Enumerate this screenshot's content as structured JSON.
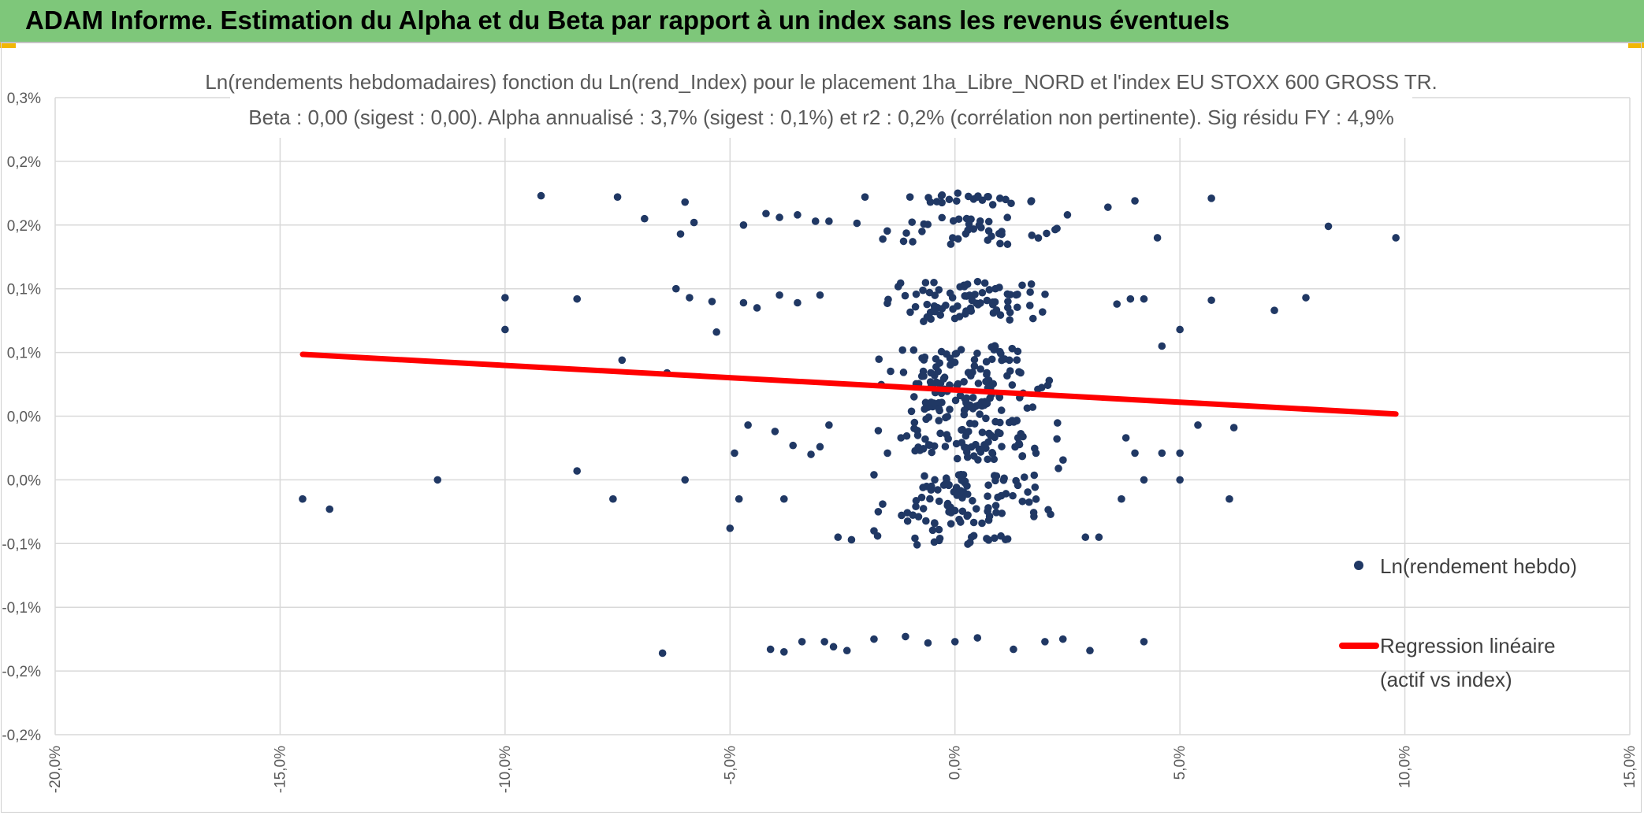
{
  "header": {
    "title": "ADAM Informe. Estimation du Alpha et du Beta par rapport à un index sans les revenus éventuels"
  },
  "colors": {
    "header_bg": "#7ec77a",
    "points": "#203864",
    "regression": "#ff0000",
    "grid": "#d9d9d9",
    "accent": "#f2b705"
  },
  "chart_data": {
    "type": "scatter",
    "title_line1": "Ln(rendements hebdomadaires) fonction du Ln(rend_Index) pour le placement 1ha_Libre_NORD et l'index EU STOXX 600 GROSS TR.",
    "title_line2": "Beta : 0,00 (sigest : 0,00). Alpha annualisé : 3,7% (sigest : 0,1%) et r2 : 0,2% (corrélation non pertinente). Sig résidu FY : 4,9%",
    "xlim": [
      -20,
      15
    ],
    "ylim": [
      -0.2,
      0.3
    ],
    "x_ticks": [
      -20,
      -15,
      -10,
      -5,
      0,
      5,
      10,
      15
    ],
    "x_tick_labels": [
      "-20,0%",
      "-15,0%",
      "-10,0%",
      "-5,0%",
      "0,0%",
      "5,0%",
      "10,0%",
      "15,0%"
    ],
    "y_ticks": [
      0.3,
      0.25,
      0.2,
      0.15,
      0.1,
      0.05,
      0.0,
      -0.05,
      -0.1,
      -0.15,
      -0.2
    ],
    "y_tick_labels": [
      "0,3%",
      "0,2%",
      "0,2%",
      "0,1%",
      "0,1%",
      "0,0%",
      "0,0%",
      "-0,1%",
      "-0,1%",
      "-0,2%",
      "-0,2%"
    ],
    "regression": {
      "x": [
        -14.5,
        9.8
      ],
      "y": [
        0.0985,
        0.0517
      ]
    },
    "legend": [
      {
        "label": "Ln(rendement hebdo)",
        "kind": "marker"
      },
      {
        "label_line1": "Regression linéaire",
        "label_line2": "(actif vs index)",
        "kind": "line"
      }
    ],
    "series": [
      {
        "name": "Ln(rendement hebdo)",
        "points": [
          [
            -14.5,
            -0.015
          ],
          [
            -13.9,
            -0.023
          ],
          [
            -11.5,
            0.0
          ],
          [
            -8.4,
            0.007
          ],
          [
            -7.6,
            -0.015
          ],
          [
            -6.0,
            0.0
          ],
          [
            -5.0,
            -0.038
          ],
          [
            -4.8,
            -0.015
          ],
          [
            -3.8,
            -0.015
          ],
          [
            -2.6,
            -0.045
          ],
          [
            -2.3,
            -0.047
          ],
          [
            -1.8,
            -0.04
          ],
          [
            3.2,
            -0.045
          ],
          [
            2.9,
            -0.045
          ],
          [
            6.1,
            -0.015
          ],
          [
            5.0,
            0.0
          ],
          [
            4.2,
            0.0
          ],
          [
            3.7,
            -0.015
          ],
          [
            -10.0,
            0.143
          ],
          [
            -10.0,
            0.118
          ],
          [
            -8.4,
            0.142
          ],
          [
            -7.4,
            0.094
          ],
          [
            -6.4,
            0.084
          ],
          [
            -6.2,
            0.15
          ],
          [
            -5.9,
            0.143
          ],
          [
            -5.4,
            0.14
          ],
          [
            -5.3,
            0.116
          ],
          [
            -4.7,
            0.139
          ],
          [
            -4.4,
            0.135
          ],
          [
            -3.9,
            0.145
          ],
          [
            -3.5,
            0.139
          ],
          [
            -3.0,
            0.145
          ],
          [
            7.1,
            0.133
          ],
          [
            7.8,
            0.143
          ],
          [
            5.7,
            0.141
          ],
          [
            5.0,
            0.118
          ],
          [
            4.6,
            0.105
          ],
          [
            4.2,
            0.142
          ],
          [
            3.6,
            0.138
          ],
          [
            3.9,
            0.142
          ],
          [
            6.2,
            0.041
          ],
          [
            5.4,
            0.043
          ],
          [
            5.0,
            0.021
          ],
          [
            4.6,
            0.021
          ],
          [
            4.0,
            0.021
          ],
          [
            3.8,
            0.033
          ],
          [
            -4.9,
            0.021
          ],
          [
            -4.6,
            0.043
          ],
          [
            -4.0,
            0.038
          ],
          [
            -3.6,
            0.027
          ],
          [
            -3.2,
            0.02
          ],
          [
            -3.0,
            0.026
          ],
          [
            -2.8,
            0.043
          ],
          [
            -9.2,
            0.223
          ],
          [
            -7.5,
            0.222
          ],
          [
            -6.9,
            0.205
          ],
          [
            -6.1,
            0.193
          ],
          [
            -6.0,
            0.218
          ],
          [
            -5.8,
            0.202
          ],
          [
            -4.7,
            0.2
          ],
          [
            -4.2,
            0.209
          ],
          [
            -3.9,
            0.206
          ],
          [
            -3.5,
            0.208
          ],
          [
            -3.1,
            0.203
          ],
          [
            -2.8,
            0.203
          ],
          [
            -2.0,
            0.222
          ],
          [
            -1.0,
            0.222
          ],
          [
            -0.3,
            0.223
          ],
          [
            0.5,
            0.222
          ],
          [
            1.0,
            0.221
          ],
          [
            1.7,
            0.219
          ],
          [
            2.5,
            0.208
          ],
          [
            3.4,
            0.214
          ],
          [
            4.0,
            0.219
          ],
          [
            4.5,
            0.19
          ],
          [
            5.7,
            0.221
          ],
          [
            8.3,
            0.199
          ],
          [
            9.8,
            0.19
          ],
          [
            -6.5,
            -0.136
          ],
          [
            -4.1,
            -0.133
          ],
          [
            -3.8,
            -0.135
          ],
          [
            -3.4,
            -0.127
          ],
          [
            -2.9,
            -0.127
          ],
          [
            -2.7,
            -0.131
          ],
          [
            -2.4,
            -0.134
          ],
          [
            -1.8,
            -0.125
          ],
          [
            -1.1,
            -0.123
          ],
          [
            -0.6,
            -0.128
          ],
          [
            0.0,
            -0.127
          ],
          [
            0.5,
            -0.124
          ],
          [
            1.3,
            -0.133
          ],
          [
            2.0,
            -0.127
          ],
          [
            2.4,
            -0.125
          ],
          [
            3.0,
            -0.134
          ],
          [
            4.2,
            -0.127
          ],
          [
            -1.8,
            0.004
          ],
          [
            -1.5,
            0.021
          ],
          [
            -1.2,
            0.033
          ],
          [
            -0.9,
            0.045
          ],
          [
            -0.6,
            0.057
          ],
          [
            -0.3,
            0.068
          ],
          [
            0.2,
            0.077
          ],
          [
            0.6,
            0.058
          ],
          [
            1.0,
            0.045
          ],
          [
            1.4,
            0.033
          ],
          [
            1.8,
            0.021
          ],
          [
            2.3,
            0.009
          ]
        ],
        "cluster_center_x": 0.2,
        "cluster_band_y": [
          0.22,
          0.2,
          0.19,
          0.15,
          0.14,
          0.13,
          0.1,
          0.09,
          0.08,
          0.07,
          0.06,
          0.05,
          0.04,
          0.03,
          0.02,
          0.0,
          -0.01,
          -0.02,
          -0.03,
          -0.045
        ]
      }
    ]
  }
}
